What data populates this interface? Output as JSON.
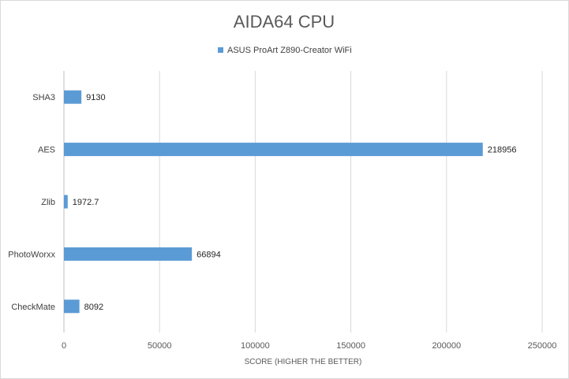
{
  "chart_data": {
    "type": "bar",
    "orientation": "horizontal",
    "title": "AIDA64 CPU",
    "xlabel": "SCORE (HIGHER THE BETTER)",
    "ylabel": "",
    "categories": [
      "SHA3",
      "AES",
      "Zlib",
      "PhotoWorxx",
      "CheckMate"
    ],
    "series": [
      {
        "name": "ASUS ProArt Z890-Creator WiFi",
        "color": "#5b9bd5",
        "values": [
          9130,
          218956,
          1972.7,
          66894,
          8092
        ],
        "labels": [
          "9130",
          "218956",
          "1972.7",
          "66894",
          "8092"
        ]
      }
    ],
    "xlim": [
      0,
      250000
    ],
    "xticks": [
      "0",
      "50000",
      "100000",
      "150000",
      "200000",
      "250000"
    ],
    "grid": true,
    "legend": "top"
  }
}
